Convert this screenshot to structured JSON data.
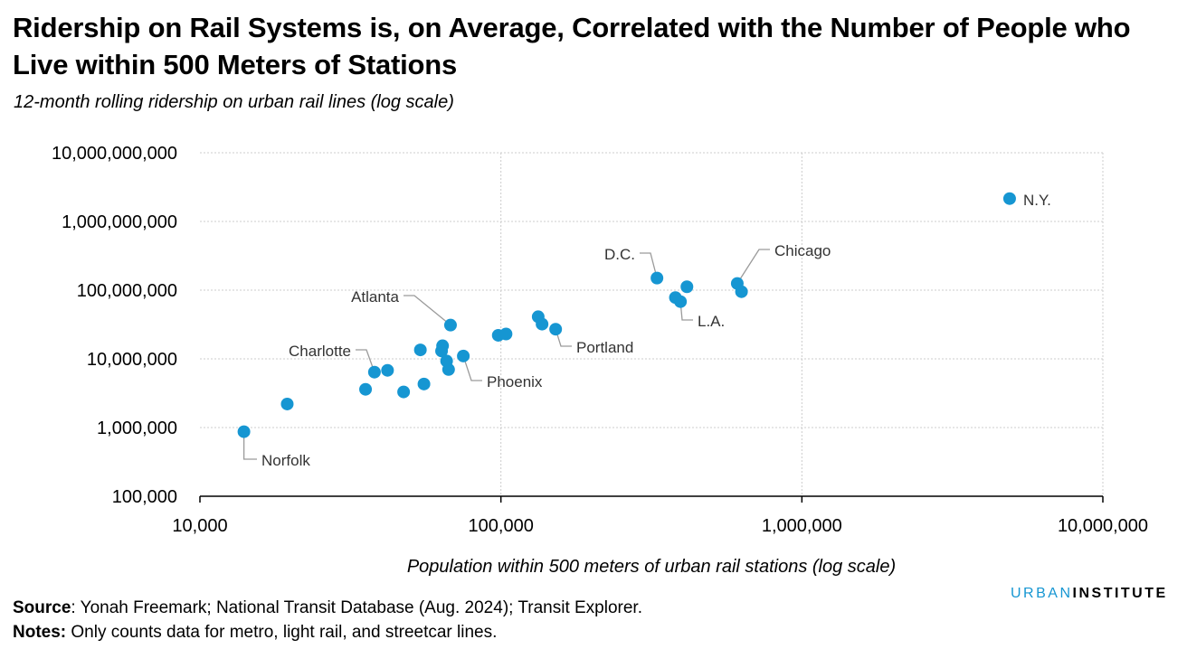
{
  "title": "Ridership on Rail Systems is, on Average, Correlated with the Number of People who Live within 500 Meters of Stations",
  "subtitle": "12-month rolling ridership on urban rail lines (log scale)",
  "footer": {
    "source_label": "Source",
    "source_text": ": Yonah Freemark; National Transit Database (Aug. 2024); Transit Explorer.",
    "notes_label": "Notes:",
    "notes_text": " Only counts data for metro, light rail, and streetcar lines."
  },
  "logo": {
    "part1": "URBAN",
    "part2": "INSTITUTE"
  },
  "colors": {
    "point": "#1696d2",
    "grid": "#cccccc",
    "leader": "#9a9a9a",
    "logo": "#1696d2"
  },
  "chart_data": {
    "type": "scatter",
    "xlabel": "Population within 500 meters of urban rail stations (log scale)",
    "ylabel": "",
    "xscale": "log",
    "yscale": "log",
    "xlim": [
      10000,
      10000000
    ],
    "ylim": [
      100000,
      10000000000
    ],
    "xticks": [
      10000,
      100000,
      1000000,
      10000000
    ],
    "xtick_labels": [
      "10,000",
      "100,000",
      "1,000,000",
      "10,000,000"
    ],
    "yticks": [
      100000,
      1000000,
      10000000,
      100000000,
      1000000000,
      10000000000
    ],
    "ytick_labels": [
      "100,000",
      "1,000,000",
      "10,000,000",
      "100,000,000",
      "1,000,000,000",
      "10,000,000,000"
    ],
    "grid": true,
    "points": [
      {
        "x": 14000,
        "y": 870000,
        "label": "Norfolk"
      },
      {
        "x": 19500,
        "y": 2200000
      },
      {
        "x": 35500,
        "y": 3600000
      },
      {
        "x": 38000,
        "y": 6400000,
        "label": "Charlotte"
      },
      {
        "x": 42000,
        "y": 6800000
      },
      {
        "x": 47500,
        "y": 3300000
      },
      {
        "x": 54000,
        "y": 13500000
      },
      {
        "x": 55500,
        "y": 4300000
      },
      {
        "x": 63500,
        "y": 13000000
      },
      {
        "x": 64000,
        "y": 15500000
      },
      {
        "x": 66000,
        "y": 9300000
      },
      {
        "x": 67000,
        "y": 7000000
      },
      {
        "x": 68000,
        "y": 31000000,
        "label": "Atlanta"
      },
      {
        "x": 75000,
        "y": 11000000,
        "label": "Phoenix"
      },
      {
        "x": 98000,
        "y": 22000000
      },
      {
        "x": 104000,
        "y": 23000000
      },
      {
        "x": 133000,
        "y": 41000000
      },
      {
        "x": 137000,
        "y": 32000000
      },
      {
        "x": 152000,
        "y": 27000000,
        "label": "Portland"
      },
      {
        "x": 330000,
        "y": 150000000,
        "label": "D.C."
      },
      {
        "x": 380000,
        "y": 78000000
      },
      {
        "x": 395000,
        "y": 68000000,
        "label": "L.A."
      },
      {
        "x": 415000,
        "y": 112000000
      },
      {
        "x": 610000,
        "y": 125000000,
        "label": "Chicago"
      },
      {
        "x": 630000,
        "y": 95000000
      },
      {
        "x": 4900000,
        "y": 2150000000,
        "label": "N.Y."
      }
    ]
  }
}
